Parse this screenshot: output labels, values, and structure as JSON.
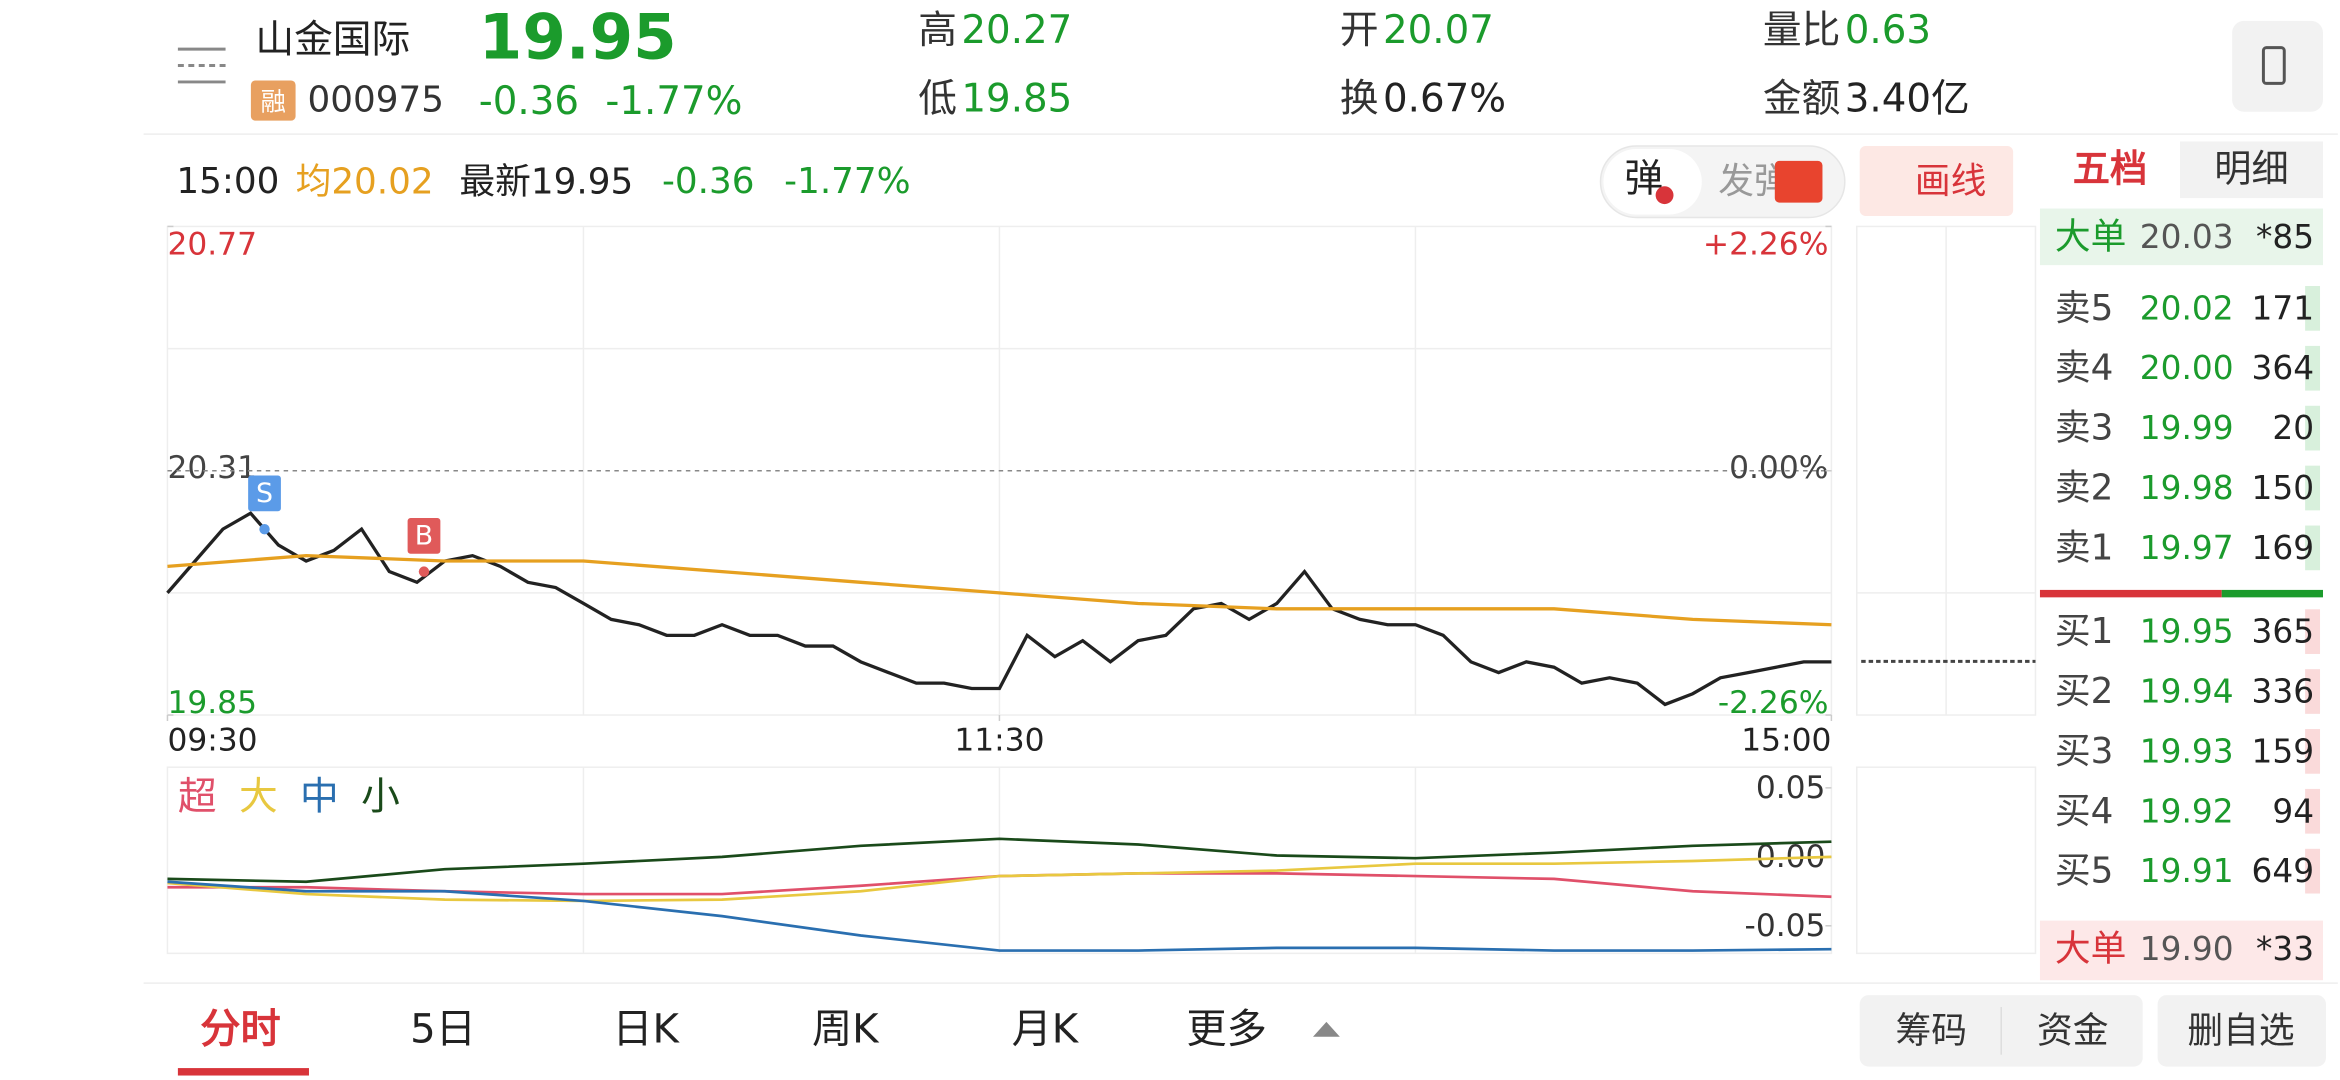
{
  "header": {
    "name": "山金国际",
    "tag": "融",
    "code": "000975",
    "price": "19.95",
    "change": "-0.36",
    "change_pct": "-1.77%",
    "stats": [
      {
        "label": "高",
        "value": "20.27"
      },
      {
        "label": "低",
        "value": "19.85"
      },
      {
        "label": "开",
        "value": "20.07"
      },
      {
        "label": "换",
        "value": "0.67%"
      },
      {
        "label": "量比",
        "value": "0.63"
      },
      {
        "label": "金额",
        "value": "3.40亿"
      }
    ]
  },
  "info_bar": {
    "time": "15:00",
    "avg_label": "均",
    "avg": "20.02",
    "latest_label": "最新",
    "latest": "19.95",
    "change": "-0.36",
    "change_pct": "-1.77%"
  },
  "toolbar": {
    "danmaku": "弹",
    "send": "发弹",
    "draw": "画线"
  },
  "order_book": {
    "tabs": [
      "五档",
      "明细"
    ],
    "big_sell": {
      "label": "大单",
      "price": "20.03",
      "volume": "*85"
    },
    "asks": [
      {
        "label": "卖5",
        "price": "20.02",
        "volume": "171"
      },
      {
        "label": "卖4",
        "price": "20.00",
        "volume": "364"
      },
      {
        "label": "卖3",
        "price": "19.99",
        "volume": "20"
      },
      {
        "label": "卖2",
        "price": "19.98",
        "volume": "150"
      },
      {
        "label": "卖1",
        "price": "19.97",
        "volume": "169"
      }
    ],
    "bids": [
      {
        "label": "买1",
        "price": "19.95",
        "volume": "365"
      },
      {
        "label": "买2",
        "price": "19.94",
        "volume": "336"
      },
      {
        "label": "买3",
        "price": "19.93",
        "volume": "159"
      },
      {
        "label": "买4",
        "price": "19.92",
        "volume": "94"
      },
      {
        "label": "买5",
        "price": "19.91",
        "volume": "649"
      }
    ],
    "big_buy": {
      "label": "大单",
      "price": "19.90",
      "volume": "*33"
    }
  },
  "chart_data": [
    {
      "type": "line",
      "xlim": [
        0,
        240
      ],
      "x": [
        0,
        4,
        8,
        12,
        16,
        20,
        24,
        28,
        32,
        36,
        40,
        44,
        48,
        52,
        56,
        60,
        64,
        68,
        72,
        76,
        80,
        84,
        88,
        92,
        96,
        100,
        104,
        108,
        112,
        116,
        120,
        124,
        128,
        132,
        136,
        140,
        144,
        148,
        152,
        156,
        160,
        164,
        168,
        172,
        176,
        180,
        184,
        188,
        192,
        196,
        200,
        204,
        208,
        212,
        216,
        220,
        224,
        228,
        232,
        236,
        240
      ],
      "xticks": [
        {
          "value": 0,
          "label": "09:30"
        },
        {
          "value": 120,
          "label": "11:30"
        },
        {
          "value": 240,
          "label": "15:00"
        }
      ],
      "ylim": [
        19.85,
        20.77
      ],
      "yticks": [
        20.77,
        20.31,
        19.85
      ],
      "y2lim": [
        -2.26,
        2.26
      ],
      "y2ticks": [
        {
          "value": 2.26,
          "label": "+2.26%"
        },
        {
          "value": 0,
          "label": "0.00%"
        },
        {
          "value": -2.26,
          "label": "-2.26%"
        }
      ],
      "series": [
        {
          "color": "#222222",
          "values": [
            20.08,
            20.14,
            20.2,
            20.23,
            20.17,
            20.14,
            20.16,
            20.2,
            20.12,
            20.1,
            20.14,
            20.15,
            20.13,
            20.1,
            20.09,
            20.06,
            20.03,
            20.02,
            20.0,
            20.0,
            20.02,
            20.0,
            20.0,
            19.98,
            19.98,
            19.95,
            19.93,
            19.91,
            19.91,
            19.9,
            19.9,
            20.0,
            19.96,
            19.99,
            19.95,
            19.99,
            20.0,
            20.05,
            20.06,
            20.03,
            20.06,
            20.12,
            20.05,
            20.03,
            20.02,
            20.02,
            20.0,
            19.95,
            19.93,
            19.95,
            19.94,
            19.91,
            19.92,
            19.91,
            19.87,
            19.89,
            19.92,
            19.93,
            19.94,
            19.95,
            19.95
          ]
        },
        {
          "color": "#e6a020",
          "x": [
            0,
            20,
            40,
            60,
            80,
            100,
            120,
            140,
            160,
            180,
            200,
            220,
            240
          ],
          "values": [
            20.13,
            20.15,
            20.14,
            20.14,
            20.12,
            20.1,
            20.08,
            20.06,
            20.05,
            20.05,
            20.05,
            20.03,
            20.02
          ]
        }
      ],
      "annotations": [
        {
          "label": "S",
          "x": 14,
          "y": 20.2,
          "color": "#5b9be8"
        },
        {
          "label": "B",
          "x": 37,
          "y": 20.12,
          "color": "#e05a5a"
        }
      ]
    },
    {
      "type": "line",
      "xlim": [
        0,
        240
      ],
      "x": [
        0,
        20,
        40,
        60,
        80,
        100,
        120,
        140,
        160,
        180,
        200,
        220,
        240
      ],
      "ylim": [
        -0.07,
        0.065
      ],
      "yticks": [
        0.05,
        {
          "value": 0,
          "label": "0.00"
        },
        -0.05
      ],
      "series": [
        {
          "name": "超",
          "color": "#e0506a",
          "values": [
            -0.022,
            -0.022,
            -0.025,
            -0.027,
            -0.027,
            -0.021,
            -0.014,
            -0.012,
            -0.012,
            -0.014,
            -0.016,
            -0.025,
            -0.029
          ]
        },
        {
          "name": "大",
          "color": "#e8c840",
          "values": [
            -0.019,
            -0.027,
            -0.031,
            -0.032,
            -0.031,
            -0.025,
            -0.014,
            -0.012,
            -0.01,
            -0.005,
            -0.005,
            -0.003,
            0.0
          ]
        },
        {
          "name": "中",
          "color": "#2a6fb0",
          "values": [
            -0.018,
            -0.025,
            -0.025,
            -0.032,
            -0.043,
            -0.057,
            -0.068,
            -0.068,
            -0.066,
            -0.066,
            -0.068,
            -0.068,
            -0.067
          ]
        },
        {
          "name": "小",
          "color": "#1a4a1a",
          "values": [
            -0.016,
            -0.018,
            -0.009,
            -0.005,
            0,
            0.008,
            0.013,
            0.009,
            0.001,
            -0.001,
            0.003,
            0.008,
            0.011
          ]
        }
      ]
    }
  ],
  "tabs": [
    "分时",
    "5日",
    "日K",
    "周K",
    "月K",
    "更多"
  ],
  "actions": [
    "筹码",
    "资金",
    "删自选"
  ]
}
